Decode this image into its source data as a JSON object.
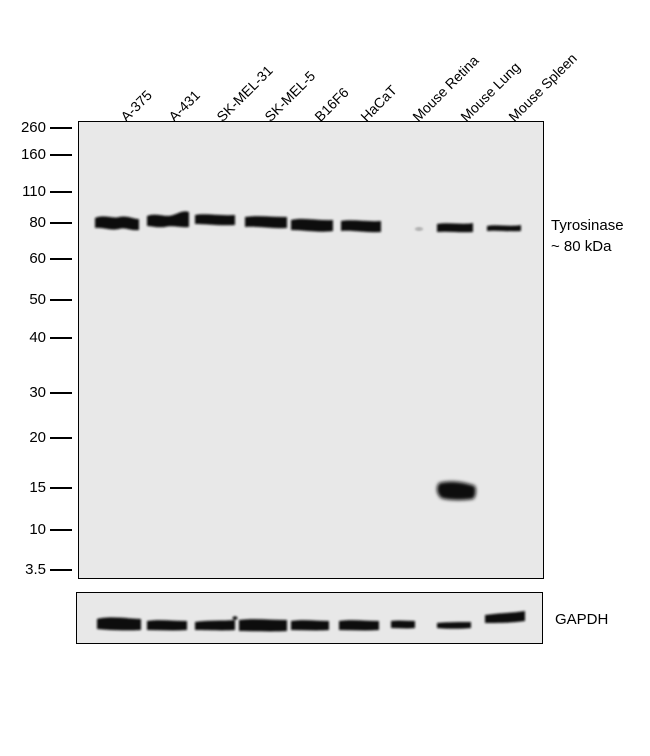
{
  "lanes": [
    {
      "label": "A-375"
    },
    {
      "label": "A-431"
    },
    {
      "label": "SK-MEL-31"
    },
    {
      "label": "SK-MEL-5"
    },
    {
      "label": "B16F6"
    },
    {
      "label": "HaCaT"
    },
    {
      "label": "Mouse Retina"
    },
    {
      "label": "Mouse Lung"
    },
    {
      "label": "Mouse Spleen"
    }
  ],
  "markers": [
    "260",
    "160",
    "110",
    "80",
    "60",
    "50",
    "40",
    "30",
    "20",
    "15",
    "10",
    "3.5"
  ],
  "main_panel": {
    "target_label_line1": "Tyrosinase",
    "target_label_line2": "~ 80 kDa"
  },
  "loading_panel": {
    "label": "GAPDH"
  },
  "colors": {
    "membrane": "#e8e8e8",
    "band": "#111111"
  }
}
